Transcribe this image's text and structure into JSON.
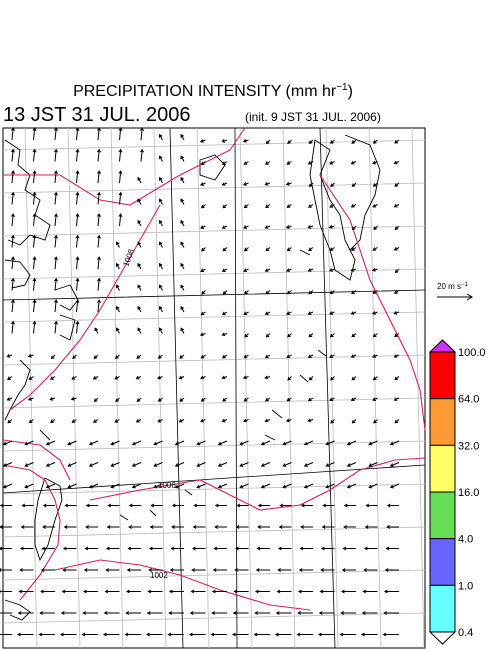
{
  "header": {
    "title": "PRECIPITATION INTENSITY (mm hr",
    "title_sup": "−1",
    "title_end": ")",
    "valid_time": "13 JST 31 JUL. 2006",
    "init_time": "(init. 9 JST 31 JUL. 2006)"
  },
  "scale": {
    "label": "20 m s",
    "label_sup": "−1"
  },
  "isobar_labels": [
    "1008",
    "1006",
    "1002"
  ],
  "colorbar": {
    "levels": [
      "100.0",
      "64.0",
      "32.0",
      "16.0",
      "4.0",
      "1.0",
      "0.4"
    ],
    "colors": [
      "#ff0000",
      "#ff9933",
      "#ffff66",
      "#66dd55",
      "#6666ff",
      "#66ffff"
    ],
    "over_color": "#cc33ff",
    "under_color": "#ffffff"
  }
}
